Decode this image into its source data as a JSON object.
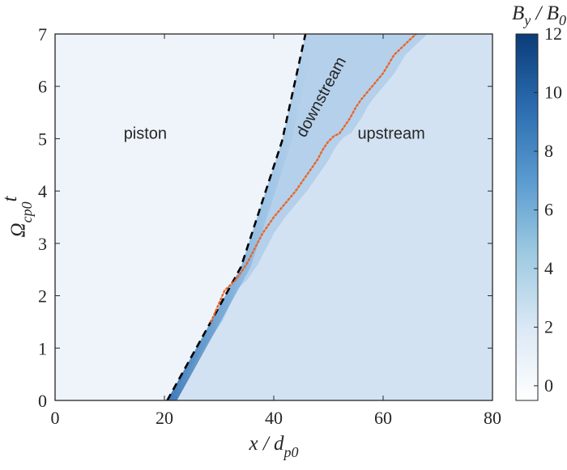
{
  "chart_data": {
    "type": "heatmap",
    "xlabel": {
      "main": "x / d",
      "sub": "p0"
    },
    "ylabel": {
      "main": "Ω",
      "sub": "cp0",
      "sup": "t"
    },
    "colorbar_label": {
      "b1": "B",
      "b1_sub": "y",
      "sep": " / ",
      "b2": "B",
      "b2_sub": "0"
    },
    "xlim": [
      0,
      80
    ],
    "ylim": [
      0,
      7
    ],
    "x_ticks": [
      0,
      20,
      40,
      60,
      80
    ],
    "y_ticks": [
      0,
      1,
      2,
      3,
      4,
      5,
      6,
      7
    ],
    "colorbar": {
      "min": -0.5,
      "max": 12,
      "ticks": [
        0,
        2,
        4,
        6,
        8,
        10,
        12
      ]
    },
    "colors": {
      "low": "#ffffff",
      "high": "#0b3c78",
      "piston_region": "#eef4fa",
      "upstream_region": "#d3e2f2",
      "shock_front_line": "#000000",
      "trajectory_line": "#e8662a"
    },
    "annotations": [
      {
        "text": "piston",
        "x": 16.5,
        "y": 5.0
      },
      {
        "text": "upstream",
        "x": 61.5,
        "y": 5.0
      },
      {
        "text": "downstream",
        "x": 49.5,
        "y": 5.75,
        "rotation_deg": -62
      }
    ],
    "series": [
      {
        "style": "black dashed",
        "x": [
          20.5,
          29,
          34,
          41.5,
          45.8
        ],
        "y": [
          0,
          1.6,
          2.55,
          4.95,
          7
        ]
      },
      {
        "style": "orange dotted",
        "x": [
          28.5,
          31,
          33,
          35,
          37,
          38,
          40,
          42,
          44,
          46,
          47,
          48,
          49,
          50,
          51,
          52,
          53,
          54,
          55,
          56,
          58,
          60,
          62,
          64,
          66
        ],
        "y": [
          1.5,
          2.1,
          2.3,
          2.6,
          3.0,
          3.2,
          3.5,
          3.75,
          4.0,
          4.3,
          4.45,
          4.6,
          4.8,
          4.95,
          5.05,
          5.1,
          5.25,
          5.4,
          5.6,
          5.75,
          6.0,
          6.25,
          6.6,
          6.8,
          7.0
        ]
      }
    ]
  }
}
